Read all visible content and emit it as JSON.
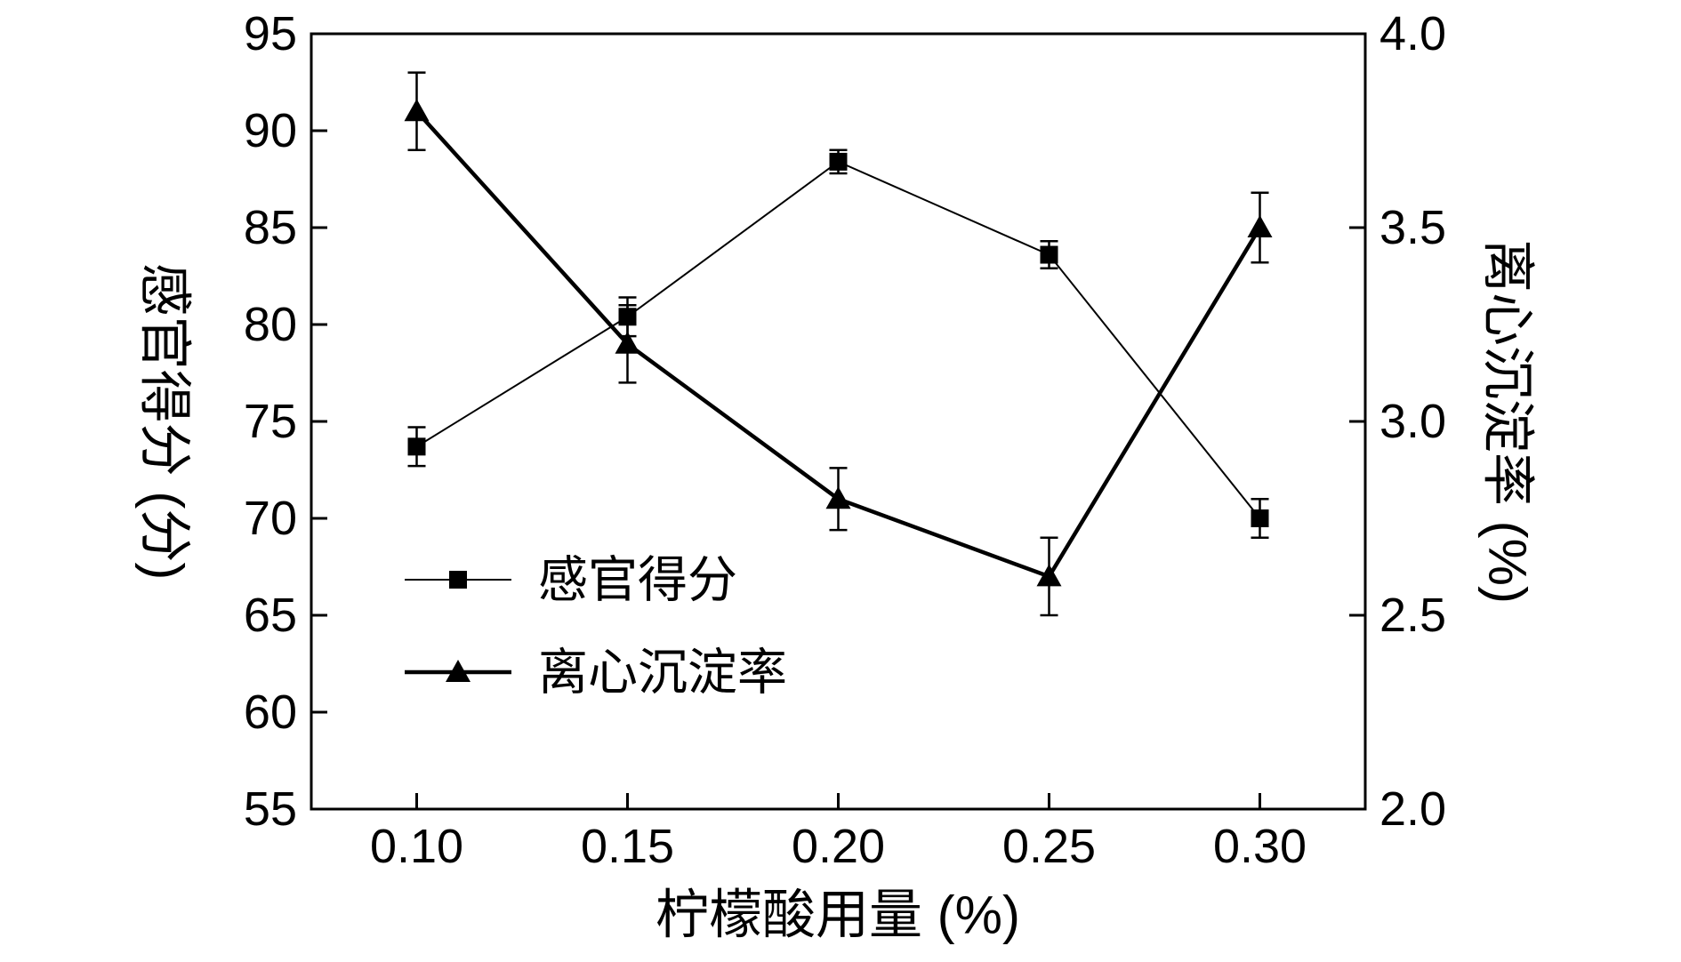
{
  "figure": {
    "background": "#ffffff",
    "foreground": "#000000"
  },
  "chart_data": {
    "type": "line",
    "title": "",
    "xlabel": "柠檬酸用量 (%)",
    "x": [
      0.1,
      0.15,
      0.2,
      0.25,
      0.3
    ],
    "x_tick_labels": [
      "0.10",
      "0.15",
      "0.20",
      "0.25",
      "0.30"
    ],
    "xlim": [
      0.075,
      0.325
    ],
    "grid": false,
    "left_axis": {
      "label": "感官得分 (分)",
      "lim": [
        55,
        95
      ],
      "ticks": [
        55,
        60,
        65,
        70,
        75,
        80,
        85,
        90,
        95
      ],
      "tick_labels": [
        "55",
        "60",
        "65",
        "70",
        "75",
        "80",
        "85",
        "90",
        "95"
      ]
    },
    "right_axis": {
      "label": "离心沉淀率 (%)",
      "lim": [
        2.0,
        4.0
      ],
      "ticks": [
        2.0,
        2.5,
        3.0,
        3.5,
        4.0
      ],
      "tick_labels": [
        "2.0",
        "2.5",
        "3.0",
        "3.5",
        "4.0"
      ]
    },
    "series": [
      {
        "name": "感官得分",
        "axis": "left",
        "marker": "square",
        "color": "#000000",
        "line_width": 2,
        "values": [
          73.7,
          80.4,
          88.4,
          83.6,
          70.0
        ],
        "errors": [
          1.0,
          1.0,
          0.6,
          0.7,
          1.0
        ]
      },
      {
        "name": "离心沉淀率",
        "axis": "right",
        "marker": "triangle-up",
        "color": "#000000",
        "line_width": 4.5,
        "values": [
          3.8,
          3.2,
          2.8,
          2.6,
          3.5
        ],
        "errors": [
          0.1,
          0.1,
          0.08,
          0.1,
          0.09
        ]
      }
    ],
    "legend": {
      "position": "inside-left-lower",
      "items": [
        "感官得分",
        "离心沉淀率"
      ]
    },
    "error_bars": true
  }
}
